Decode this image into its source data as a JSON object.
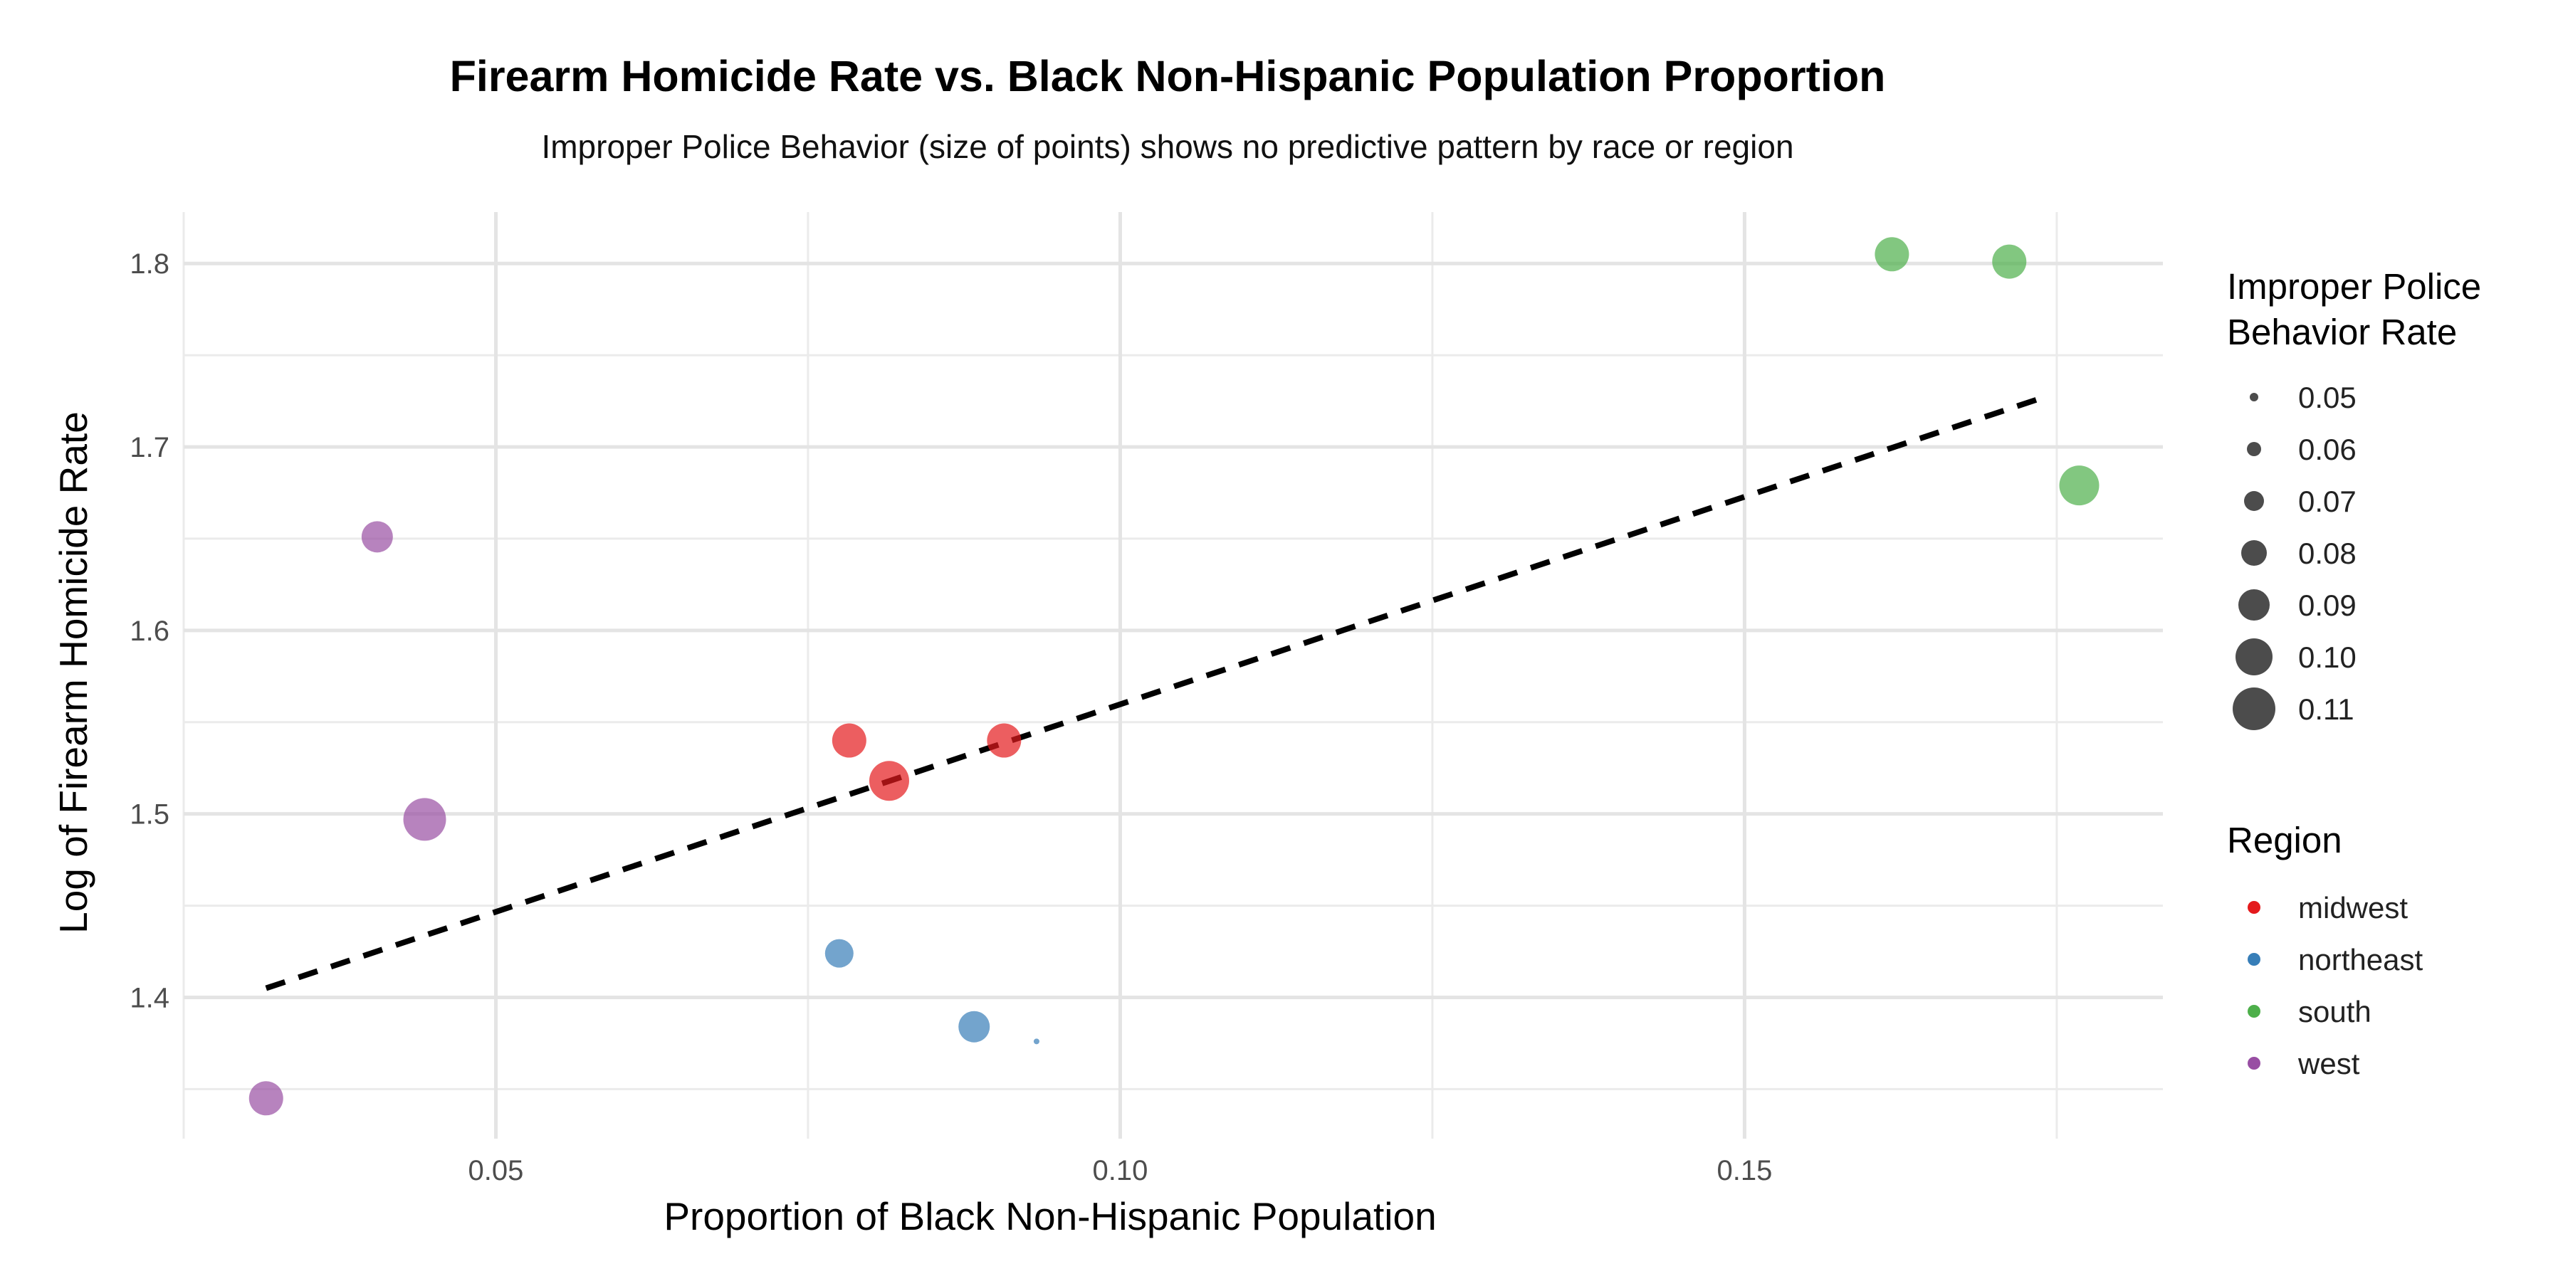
{
  "chart_data": {
    "type": "scatter",
    "title": "Firearm Homicide Rate vs. Black Non-Hispanic Population Proportion",
    "subtitle": "Improper Police Behavior (size of points) shows no predictive pattern by race or region",
    "xlabel": "Proportion of Black Non-Hispanic Population",
    "ylabel": "Log of Firearm Homicide Rate",
    "xlim": [
      0.025,
      0.1835
    ],
    "ylim": [
      1.323,
      1.828
    ],
    "x_ticks": [
      0.05,
      0.1,
      0.15
    ],
    "x_tick_labels": [
      "0.05",
      "0.10",
      "0.15"
    ],
    "x_minor_ticks": [
      0.025,
      0.075,
      0.125,
      0.175
    ],
    "y_ticks": [
      1.4,
      1.5,
      1.6,
      1.7,
      1.8
    ],
    "y_tick_labels": [
      "1.4",
      "1.5",
      "1.6",
      "1.7",
      "1.8"
    ],
    "y_minor_ticks": [
      1.35,
      1.45,
      1.55,
      1.65,
      1.75
    ],
    "grid": true,
    "point_opacity": 0.7,
    "series": [
      {
        "name": "midwest",
        "color": "#E41A1C",
        "points": [
          {
            "x": 0.0783,
            "y": 1.54,
            "size": 0.095
          },
          {
            "x": 0.0815,
            "y": 1.518,
            "size": 0.105
          },
          {
            "x": 0.0907,
            "y": 1.54,
            "size": 0.095
          }
        ]
      },
      {
        "name": "northeast",
        "color": "#377EB8",
        "points": [
          {
            "x": 0.0775,
            "y": 1.424,
            "size": 0.085
          },
          {
            "x": 0.0883,
            "y": 1.384,
            "size": 0.09
          },
          {
            "x": 0.0933,
            "y": 1.376,
            "size": 0.045
          }
        ]
      },
      {
        "name": "south",
        "color": "#4DAF4A",
        "points": [
          {
            "x": 0.1618,
            "y": 1.805,
            "size": 0.095
          },
          {
            "x": 0.1712,
            "y": 1.801,
            "size": 0.095
          },
          {
            "x": 0.1768,
            "y": 1.679,
            "size": 0.105
          }
        ]
      },
      {
        "name": "west",
        "color": "#984EA3",
        "points": [
          {
            "x": 0.0405,
            "y": 1.651,
            "size": 0.09
          },
          {
            "x": 0.0443,
            "y": 1.497,
            "size": 0.11
          },
          {
            "x": 0.0316,
            "y": 1.345,
            "size": 0.095
          }
        ]
      }
    ],
    "trend_line": {
      "x1": 0.0316,
      "y1": 1.405,
      "x2": 0.1735,
      "y2": 1.726,
      "style": "dashed",
      "color": "#000000"
    },
    "size_legend": {
      "title_line1": "Improper Police",
      "title_line2": "Behavior Rate",
      "items": [
        {
          "label": "0.05",
          "value": 0.05
        },
        {
          "label": "0.06",
          "value": 0.06
        },
        {
          "label": "0.07",
          "value": 0.07
        },
        {
          "label": "0.08",
          "value": 0.08
        },
        {
          "label": "0.09",
          "value": 0.09
        },
        {
          "label": "0.10",
          "value": 0.1
        },
        {
          "label": "0.11",
          "value": 0.11
        }
      ]
    },
    "color_legend": {
      "title": "Region",
      "items": [
        {
          "label": "midwest",
          "color": "#E41A1C"
        },
        {
          "label": "northeast",
          "color": "#377EB8"
        },
        {
          "label": "south",
          "color": "#4DAF4A"
        },
        {
          "label": "west",
          "color": "#984EA3"
        }
      ]
    },
    "legend_position": "right"
  }
}
